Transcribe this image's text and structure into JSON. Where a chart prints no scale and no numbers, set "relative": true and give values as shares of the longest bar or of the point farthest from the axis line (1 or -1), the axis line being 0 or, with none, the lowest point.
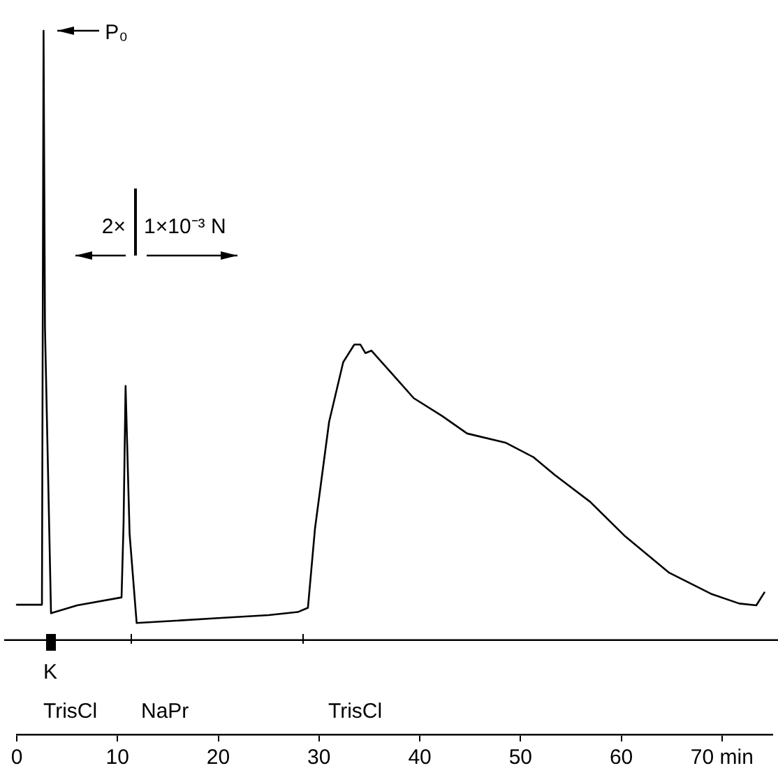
{
  "chart_data": {
    "type": "line",
    "relative": true,
    "grid": false,
    "legend": false,
    "marker": "none",
    "line_style": "solid",
    "xlim": [
      0,
      75
    ],
    "xticks": [
      0,
      10,
      20,
      30,
      40,
      50,
      60,
      {
        "value": 70,
        "label": "70 min"
      }
    ],
    "series": [
      {
        "color": "#000000",
        "x": [
          0,
          2.5,
          2.66,
          2.8,
          3.4,
          6,
          10.4,
          10.6,
          10.8,
          11.2,
          11.9,
          14,
          20,
          25,
          27.9,
          28.9,
          29.6,
          31,
          32.4,
          33.5,
          34.1,
          34.6,
          35.2,
          37.3,
          39.4,
          42.2,
          44.7,
          48.5,
          51.3,
          53.4,
          56.9,
          60.4,
          64.7,
          68.9,
          71.7,
          73.4,
          74.2
        ],
        "values": [
          0.058,
          0.058,
          1.0,
          0.514,
          0.044,
          0.057,
          0.07,
          0.191,
          0.417,
          0.174,
          0.028,
          0.03,
          0.036,
          0.041,
          0.046,
          0.053,
          0.183,
          0.358,
          0.456,
          0.485,
          0.485,
          0.471,
          0.475,
          0.436,
          0.397,
          0.368,
          0.339,
          0.324,
          0.3,
          0.271,
          0.227,
          0.17,
          0.111,
          0.076,
          0.06,
          0.057,
          0.078
        ]
      }
    ],
    "ref_lines": [
      {
        "axis": "y",
        "value": 0,
        "color": "#000000"
      }
    ],
    "annotations": [
      "P₀",
      "2×",
      "1×10⁻³ N",
      "K",
      "TrisCl",
      "NaPr",
      "TrisCl"
    ]
  }
}
